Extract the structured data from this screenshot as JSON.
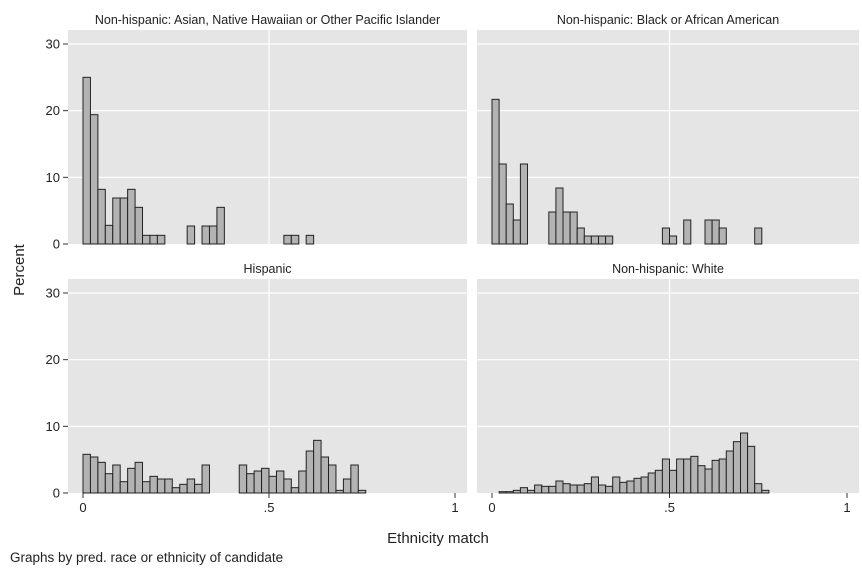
{
  "chart_data": {
    "type": "bar",
    "xlabel": "Ethnicity match",
    "ylabel": "Percent",
    "note": "Graphs by pred. race or ethnicity of candidate",
    "xlim": [
      0,
      1
    ],
    "ylim": [
      0,
      30
    ],
    "bin_width": 0.02,
    "xticks": [
      {
        "value": 0,
        "label": "0"
      },
      {
        "value": 0.5,
        "label": ".5"
      },
      {
        "value": 1,
        "label": "1"
      }
    ],
    "yticks": [
      {
        "value": 0,
        "label": "0"
      },
      {
        "value": 10,
        "label": "10"
      },
      {
        "value": 20,
        "label": "20"
      },
      {
        "value": 30,
        "label": "30"
      }
    ],
    "colors": {
      "bar_fill": "#b3b3b3",
      "bar_stroke": "#222222",
      "plot_bg": "#e5e5e5",
      "grid": "#ffffff"
    },
    "panels": [
      {
        "title": "Non-hispanic: Asian, Native Hawaiian or Other Pacific Islander",
        "x": [
          0.01,
          0.03,
          0.05,
          0.07,
          0.09,
          0.11,
          0.13,
          0.15,
          0.17,
          0.19,
          0.21,
          0.29,
          0.33,
          0.35,
          0.37,
          0.55,
          0.57,
          0.61
        ],
        "values": [
          25,
          19.4,
          8.2,
          2.8,
          6.9,
          6.9,
          8.2,
          5.5,
          1.3,
          1.3,
          1.3,
          2.7,
          2.7,
          2.7,
          5.5,
          1.3,
          1.3,
          1.3
        ]
      },
      {
        "title": "Non-hispanic: Black or African American",
        "x": [
          0.01,
          0.03,
          0.05,
          0.07,
          0.09,
          0.17,
          0.19,
          0.21,
          0.23,
          0.25,
          0.27,
          0.29,
          0.31,
          0.33,
          0.49,
          0.51,
          0.55,
          0.61,
          0.63,
          0.65,
          0.75
        ],
        "values": [
          21.7,
          12,
          6,
          3.6,
          12,
          4.8,
          8.4,
          4.8,
          4.8,
          2.4,
          1.2,
          1.2,
          1.2,
          1.2,
          2.4,
          1.2,
          3.6,
          3.6,
          3.6,
          2.4,
          2.4
        ]
      },
      {
        "title": "Hispanic",
        "x": [
          0.01,
          0.03,
          0.05,
          0.07,
          0.09,
          0.11,
          0.13,
          0.15,
          0.17,
          0.19,
          0.21,
          0.23,
          0.25,
          0.27,
          0.29,
          0.31,
          0.33,
          0.35,
          0.37,
          0.43,
          0.45,
          0.47,
          0.49,
          0.51,
          0.53,
          0.55,
          0.57,
          0.59,
          0.61,
          0.63,
          0.65,
          0.67,
          0.69,
          0.71,
          0.73,
          0.75,
          0.77,
          0.79,
          0.81
        ],
        "values": [
          5.8,
          5.4,
          4.6,
          2.9,
          4.2,
          1.7,
          3.7,
          4.6,
          1.7,
          2.5,
          2.1,
          2.1,
          0.8,
          1.3,
          2.1,
          1.3,
          4.2,
          0,
          0,
          4.2,
          2.9,
          3.3,
          3.7,
          2.5,
          3.3,
          2.1,
          0.8,
          3.3,
          6.3,
          7.9,
          5.4,
          4.2,
          0.4,
          2.1,
          4.2,
          0.4,
          0,
          0,
          0
        ]
      },
      {
        "title": "Non-hispanic: White",
        "x": [
          0.01,
          0.03,
          0.05,
          0.07,
          0.09,
          0.11,
          0.13,
          0.15,
          0.17,
          0.19,
          0.21,
          0.23,
          0.25,
          0.27,
          0.29,
          0.31,
          0.33,
          0.35,
          0.37,
          0.39,
          0.41,
          0.43,
          0.45,
          0.47,
          0.49,
          0.51,
          0.53,
          0.55,
          0.57,
          0.59,
          0.61,
          0.63,
          0.65,
          0.67,
          0.69,
          0.71,
          0.73,
          0.75,
          0.77,
          0.79,
          0.81,
          0.83,
          0.85,
          0.87,
          0.89,
          0.91,
          0.93,
          0.95,
          0.97,
          0.99
        ],
        "values": [
          0,
          0.2,
          0.2,
          0.4,
          0.8,
          0.4,
          1.2,
          1,
          1,
          1.8,
          1.4,
          1.2,
          1.2,
          1.4,
          2.4,
          1.2,
          1,
          2.4,
          1.6,
          1.8,
          2.2,
          2.4,
          3,
          3.4,
          5.1,
          3.4,
          5.1,
          5.1,
          5.5,
          4.1,
          3.6,
          4.9,
          5.1,
          6.3,
          7.7,
          9,
          7,
          1.4,
          0.4,
          0,
          0,
          0,
          0,
          0,
          0,
          0,
          0,
          0,
          0,
          0
        ]
      }
    ]
  }
}
